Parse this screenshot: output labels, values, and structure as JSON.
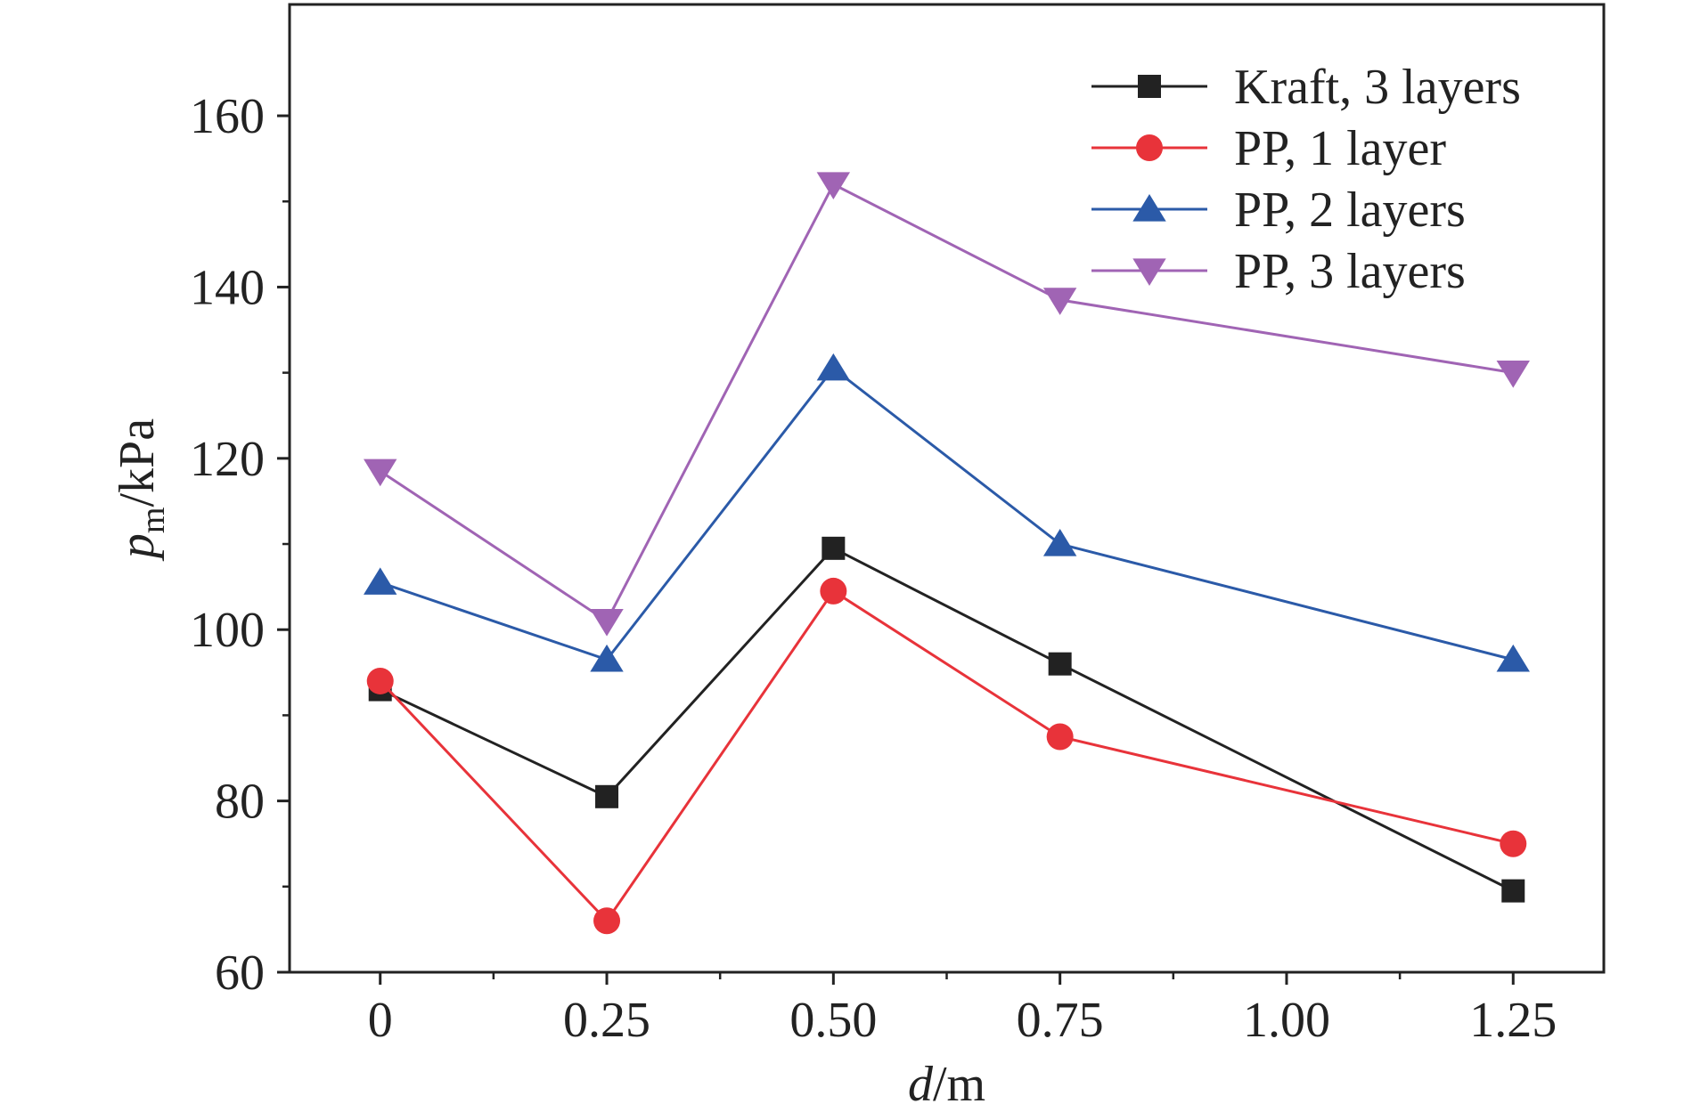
{
  "chart_data": {
    "type": "line",
    "title": "",
    "x_axis": {
      "label_var": "d",
      "label_unit": "/m",
      "range": [
        -0.1,
        1.35
      ],
      "ticks": [
        0,
        0.25,
        0.5,
        0.75,
        1.0,
        1.25
      ],
      "tick_labels": [
        "0",
        "0.25",
        "0.50",
        "0.75",
        "1.00",
        "1.25"
      ]
    },
    "y_axis": {
      "label_var": "p",
      "label_sub": "m",
      "label_unit": "/kPa",
      "range": [
        60,
        173
      ],
      "ticks": [
        60,
        80,
        100,
        120,
        140,
        160
      ],
      "tick_labels": [
        "60",
        "80",
        "100",
        "120",
        "140",
        "160"
      ]
    },
    "grid": false,
    "legend_position": "top-right",
    "x": [
      0,
      0.25,
      0.5,
      0.75,
      1.25
    ],
    "series": [
      {
        "name": "Kraft, 3 layers",
        "color": "#222222",
        "marker": "square",
        "values": [
          93,
          80.5,
          109.5,
          96,
          69.5
        ]
      },
      {
        "name": "PP, 1 layer",
        "color": "#e8333a",
        "marker": "circle",
        "values": [
          94,
          66,
          104.5,
          87.5,
          75
        ]
      },
      {
        "name": "PP, 2 layers",
        "color": "#2b5aa8",
        "marker": "triangle-up",
        "values": [
          105.5,
          96.5,
          130.5,
          110,
          96.5
        ]
      },
      {
        "name": "PP, 3 layers",
        "color": "#a064b4",
        "marker": "triangle-down",
        "values": [
          118.5,
          101,
          152,
          138.5,
          130
        ]
      }
    ]
  }
}
